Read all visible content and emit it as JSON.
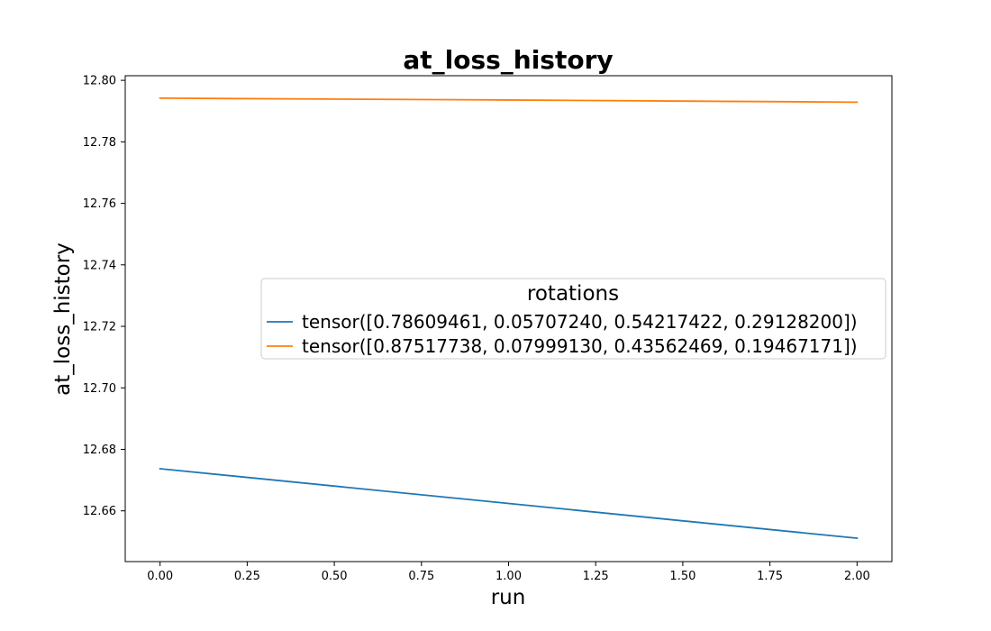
{
  "chart_data": {
    "type": "line",
    "title": "at_loss_history",
    "xlabel": "run",
    "ylabel": "at_loss_history",
    "x": [
      0,
      1,
      2
    ],
    "xlim": [
      -0.1,
      2.1
    ],
    "ylim": [
      12.6435,
      12.8015
    ],
    "x_ticks": [
      0.0,
      0.25,
      0.5,
      0.75,
      1.0,
      1.25,
      1.5,
      1.75,
      2.0
    ],
    "x_tick_labels": [
      "0.00",
      "0.25",
      "0.50",
      "0.75",
      "1.00",
      "1.25",
      "1.50",
      "1.75",
      "2.00"
    ],
    "y_ticks": [
      12.66,
      12.68,
      12.7,
      12.72,
      12.74,
      12.76,
      12.78,
      12.8
    ],
    "y_tick_labels": [
      "12.66",
      "12.68",
      "12.70",
      "12.72",
      "12.74",
      "12.76",
      "12.78",
      "12.80"
    ],
    "grid": false,
    "legend": {
      "title": "rotations",
      "placement": "center-right"
    },
    "series": [
      {
        "name": "tensor([0.78609461, 0.05707240, 0.54217422, 0.29128200])",
        "color": "#1f77b4",
        "values": [
          12.6737,
          12.6624,
          12.6511
        ]
      },
      {
        "name": "tensor([0.87517738, 0.07999130, 0.43562469, 0.19467171])",
        "color": "#ff7f0e",
        "values": [
          12.7942,
          12.7936,
          12.7929
        ]
      }
    ]
  }
}
